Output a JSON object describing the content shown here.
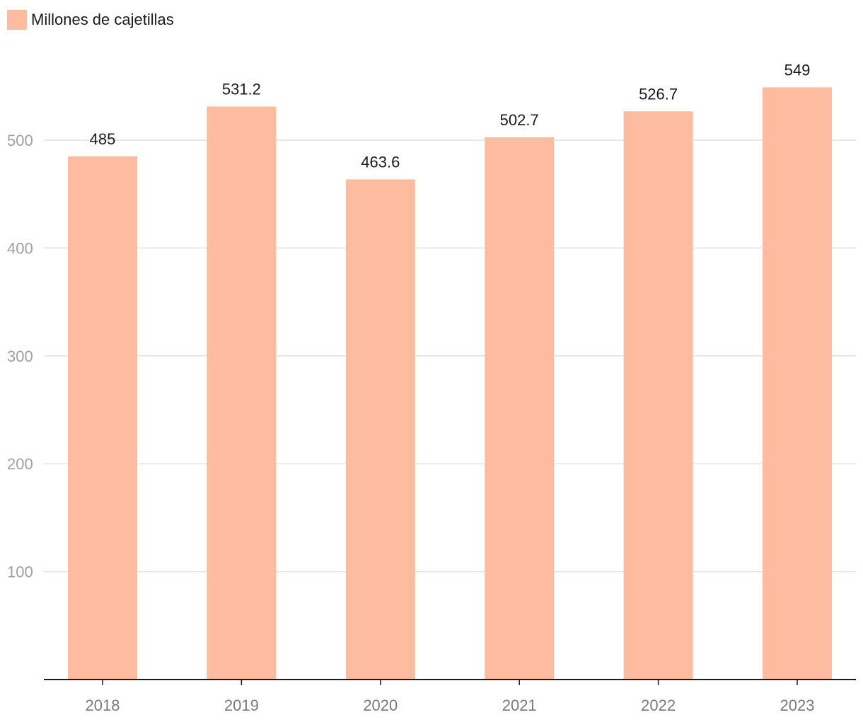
{
  "chart_data": {
    "type": "bar",
    "categories": [
      "2018",
      "2019",
      "2020",
      "2021",
      "2022",
      "2023"
    ],
    "series": [
      {
        "name": "Millones de cajetillas",
        "values": [
          485,
          531.2,
          463.6,
          502.7,
          526.7,
          549
        ],
        "data_labels": [
          "485",
          "531.2",
          "463.6",
          "502.7",
          "526.7",
          "549"
        ],
        "color": "#fdbc9f"
      }
    ],
    "yticks": [
      100,
      200,
      300,
      400,
      500
    ],
    "ylim": [
      0,
      549
    ],
    "grid": true,
    "legend_position": "top-left",
    "title": "",
    "xlabel": "",
    "ylabel": ""
  },
  "colors": {
    "bar": "#fdbc9f",
    "grid": "#e2e2e2",
    "axis": "#1a1a1a"
  }
}
